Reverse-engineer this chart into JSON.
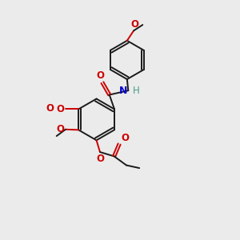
{
  "background_color": "#ebebeb",
  "bond_color": "#1a1a1a",
  "O_color": "#cc0000",
  "N_color": "#0000cc",
  "H_color": "#4a9a8a",
  "bond_width": 1.4,
  "dbo": 0.055,
  "font_size": 8.5,
  "fig_width": 3.0,
  "fig_height": 3.0,
  "dpi": 100,
  "xlim": [
    0,
    10
  ],
  "ylim": [
    0,
    10
  ]
}
